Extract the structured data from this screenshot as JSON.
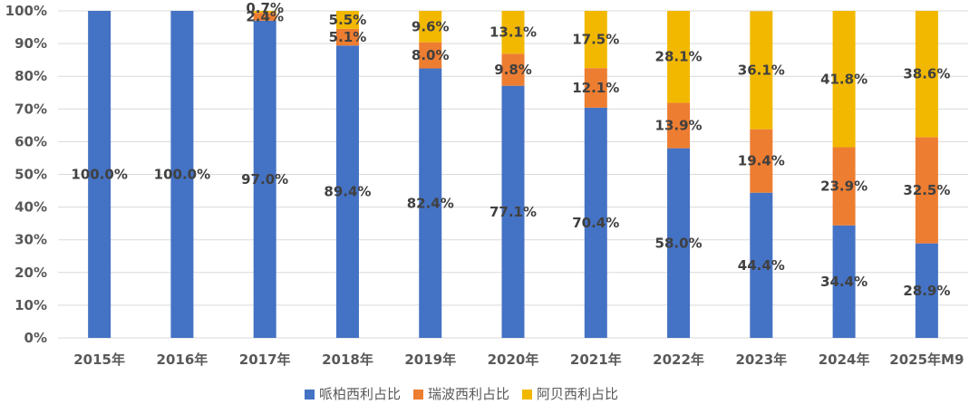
{
  "chart_data": {
    "type": "bar",
    "stacked": true,
    "categories": [
      "2015年",
      "2016年",
      "2017年",
      "2018年",
      "2019年",
      "2020年",
      "2021年",
      "2022年",
      "2023年",
      "2024年",
      "2025年M9"
    ],
    "series": [
      {
        "name": "哌柏西利占比",
        "color": "#4472c4",
        "values": [
          100.0,
          100.0,
          97.0,
          89.4,
          82.4,
          77.1,
          70.4,
          58.0,
          44.4,
          34.4,
          28.9
        ],
        "labels": [
          "100.0%",
          "100.0%",
          "97.0%",
          "89.4%",
          "82.4%",
          "77.1%",
          "70.4%",
          "58.0%",
          "44.4%",
          "34.4%",
          "28.9%"
        ]
      },
      {
        "name": "瑞波西利占比",
        "color": "#ed7d31",
        "values": [
          0,
          0,
          2.4,
          5.1,
          8.0,
          9.8,
          12.1,
          13.9,
          19.4,
          23.9,
          32.5
        ],
        "labels": [
          "",
          "",
          "2.4%",
          "5.1%",
          "8.0%",
          "9.8%",
          "12.1%",
          "13.9%",
          "19.4%",
          "23.9%",
          "32.5%"
        ]
      },
      {
        "name": "阿贝西利占比",
        "color": "#f2b800",
        "values": [
          0,
          0,
          0.7,
          5.5,
          9.6,
          13.1,
          17.5,
          28.1,
          36.1,
          41.8,
          38.6
        ],
        "labels": [
          "",
          "",
          "0.7%",
          "5.5%",
          "9.6%",
          "13.1%",
          "17.5%",
          "28.1%",
          "36.1%",
          "41.8%",
          "38.6%"
        ]
      }
    ],
    "ylim": [
      0,
      100
    ],
    "yticks": [
      "0%",
      "10%",
      "20%",
      "30%",
      "40%",
      "50%",
      "60%",
      "70%",
      "80%",
      "90%",
      "100%"
    ],
    "grid": true,
    "legend_position": "bottom",
    "title": "",
    "xlabel": "",
    "ylabel": ""
  }
}
